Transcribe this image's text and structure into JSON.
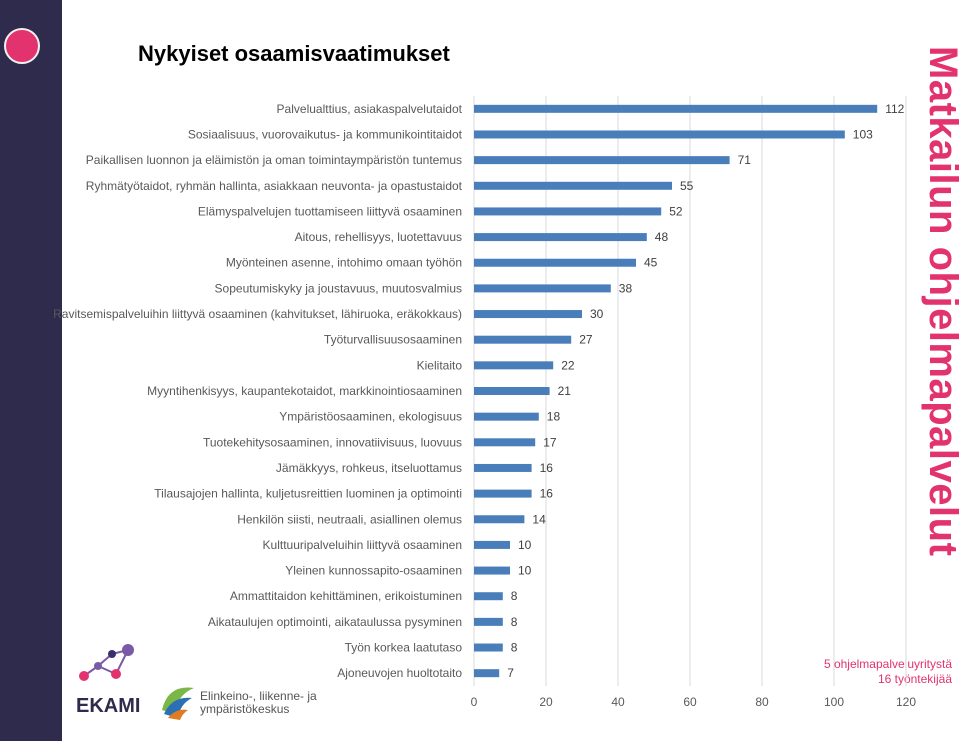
{
  "page": {
    "title": "Nykyiset osaamisvaatimukset",
    "side_title": "Matkailun ohjelmapalvelut",
    "note_line1": "5 ohjelmapalveluyritystä",
    "note_line2": "16 työntekijää"
  },
  "logos": {
    "ekami": "EKAMI",
    "ely_line1": "Elinkeino-, liikenne- ja",
    "ely_line2": "ympäristökeskus"
  },
  "colors": {
    "bar": "#4a7ebb",
    "accent": "#e2336f",
    "sidebar": "#2f2b4c"
  },
  "chart_data": {
    "type": "bar",
    "orientation": "horizontal",
    "categories": [
      "Palvelualttius, asiakaspalvelutaidot",
      "Sosiaalisuus, vuorovaikutus- ja kommunikointitaidot",
      "Paikallisen luonnon ja eläimistön ja oman toimintaympäristön tuntemus",
      "Ryhmätyötaidot, ryhmän hallinta, asiakkaan neuvonta- ja opastustaidot",
      "Elämyspalvelujen tuottamiseen liittyvä osaaminen",
      "Aitous, rehellisyys, luotettavuus",
      "Myönteinen asenne, intohimo omaan työhön",
      "Sopeutumiskyky ja joustavuus, muutosvalmius",
      "Ravitsemispalveluihin liittyvä osaaminen (kahvitukset, lähiruoka, eräkokkaus)",
      "Työturvallisuusosaaminen",
      "Kielitaito",
      "Myyntihenkisyys, kaupantekotaidot, markkinointiosaaminen",
      "Ympäristöosaaminen, ekologisuus",
      "Tuotekehitysosaaminen, innovatiivisuus, luovuus",
      "Jämäkkyys, rohkeus, itseluottamus",
      "Tilausajojen hallinta, kuljetusreittien luominen ja optimointi",
      "Henkilön siisti, neutraali, asiallinen olemus",
      "Kulttuuripalveluihin liittyvä osaaminen",
      "Yleinen kunnossapito-osaaminen",
      "Ammattitaidon kehittäminen, erikoistuminen",
      "Aikataulujen optimointi, aikataulussa pysyminen",
      "Työn korkea laatutaso",
      "Ajoneuvojen huoltotaito"
    ],
    "values": [
      112,
      103,
      71,
      55,
      52,
      48,
      45,
      38,
      30,
      27,
      22,
      21,
      18,
      17,
      16,
      16,
      14,
      10,
      10,
      8,
      8,
      8,
      7
    ],
    "xlim": [
      0,
      120
    ],
    "xticks": [
      0,
      20,
      40,
      60,
      80,
      100,
      120
    ],
    "grid": true,
    "legend": "none"
  }
}
